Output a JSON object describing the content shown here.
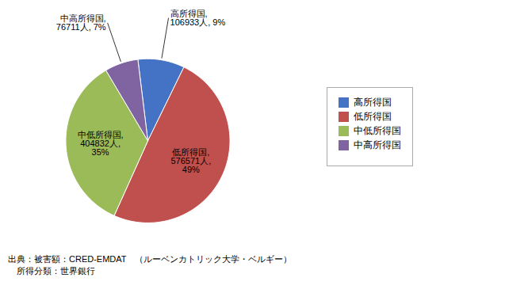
{
  "chart_data": {
    "type": "pie",
    "categories": [
      "高所得国",
      "低所得国",
      "中低所得国",
      "中高所得国"
    ],
    "values": [
      106933,
      576571,
      404832,
      76711
    ],
    "value_labels": [
      "高所得国,\n106933人, 9%",
      "低所得国,\n576571人,\n49%",
      "中低所得国,\n404832人,\n35%",
      "中高所得国,\n76711人, 7%"
    ],
    "colors": [
      "#4472C4",
      "#C0504D",
      "#9BBB59",
      "#8064A2"
    ],
    "data_labels": true,
    "legend": "right",
    "caption": [
      "出典：被害額：CRED-EMDAT　（ルーベンカトリック大学・ベルギー）",
      "　所得分類：世界銀行"
    ]
  }
}
